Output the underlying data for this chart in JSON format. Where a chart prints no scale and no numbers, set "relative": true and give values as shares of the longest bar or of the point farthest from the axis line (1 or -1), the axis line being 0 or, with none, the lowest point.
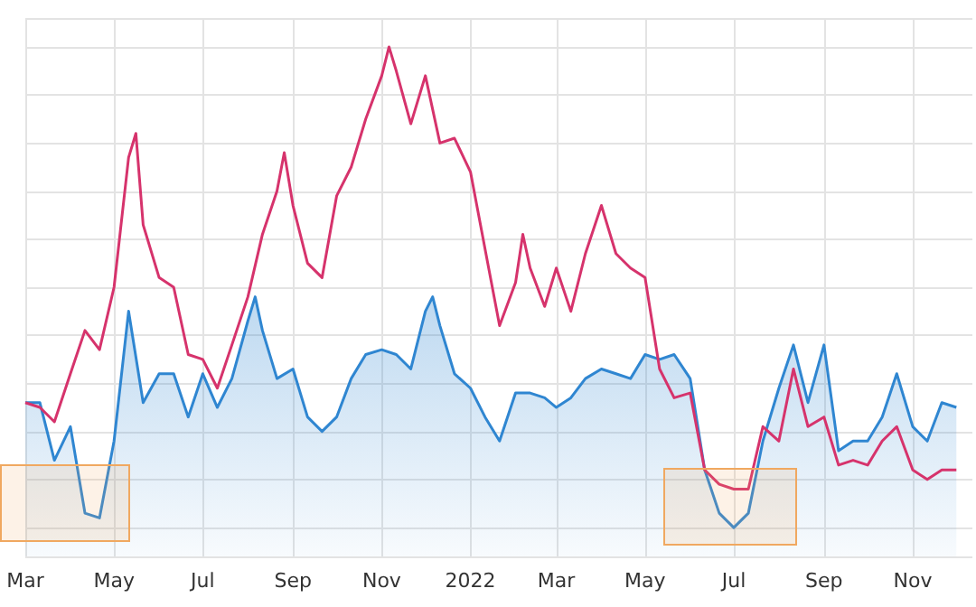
{
  "chart_data": {
    "type": "line",
    "relative": true,
    "grid": true,
    "tick_labels": "x",
    "marker": "none",
    "xlim": [
      "2021-03-01",
      "2022-12-12"
    ],
    "xticks": [
      {
        "value": "2021-03-01",
        "label": "Mar"
      },
      {
        "value": "2021-05-01",
        "label": "May"
      },
      {
        "value": "2021-07-01",
        "label": "Jul"
      },
      {
        "value": "2021-09-01",
        "label": "Sep"
      },
      {
        "value": "2021-11-01",
        "label": "Nov"
      },
      {
        "value": "2022-01-01",
        "label": "2022"
      },
      {
        "value": "2022-03-01",
        "label": "Mar"
      },
      {
        "value": "2022-05-01",
        "label": "May"
      },
      {
        "value": "2022-07-01",
        "label": "Jul"
      },
      {
        "value": "2022-09-01",
        "label": "Sep"
      },
      {
        "value": "2022-11-01",
        "label": "Nov"
      }
    ],
    "series": [
      {
        "color": "#d6336c",
        "x": [
          "2021-03-01",
          "2021-03-11",
          "2021-03-21",
          "2021-04-01",
          "2021-04-11",
          "2021-04-21",
          "2021-05-01",
          "2021-05-11",
          "2021-05-16",
          "2021-05-21",
          "2021-06-01",
          "2021-06-11",
          "2021-06-21",
          "2021-07-01",
          "2021-07-11",
          "2021-07-21",
          "2021-08-01",
          "2021-08-11",
          "2021-08-21",
          "2021-08-26",
          "2021-09-01",
          "2021-09-11",
          "2021-09-21",
          "2021-10-01",
          "2021-10-11",
          "2021-10-21",
          "2021-11-01",
          "2021-11-06",
          "2021-11-11",
          "2021-11-21",
          "2021-12-01",
          "2021-12-11",
          "2021-12-21",
          "2022-01-01",
          "2022-01-11",
          "2022-01-21",
          "2022-02-01",
          "2022-02-06",
          "2022-02-11",
          "2022-02-21",
          "2022-03-01",
          "2022-03-11",
          "2022-03-21",
          "2022-04-01",
          "2022-04-11",
          "2022-04-21",
          "2022-05-01",
          "2022-05-11",
          "2022-05-21",
          "2022-06-01",
          "2022-06-11",
          "2022-06-21",
          "2022-07-01",
          "2022-07-11",
          "2022-07-21",
          "2022-08-01",
          "2022-08-11",
          "2022-08-21",
          "2022-09-01",
          "2022-09-11",
          "2022-09-21",
          "2022-10-01",
          "2022-10-11",
          "2022-10-21",
          "2022-11-01",
          "2022-11-11",
          "2022-11-21",
          "2022-12-01"
        ],
        "values": [
          0.26,
          0.25,
          0.22,
          0.32,
          0.41,
          0.37,
          0.5,
          0.77,
          0.82,
          0.63,
          0.52,
          0.5,
          0.36,
          0.35,
          0.29,
          0.38,
          0.48,
          0.61,
          0.7,
          0.78,
          0.67,
          0.55,
          0.52,
          0.69,
          0.75,
          0.85,
          0.94,
          1,
          0.95,
          0.84,
          0.94,
          0.8,
          0.81,
          0.74,
          0.58,
          0.42,
          0.51,
          0.61,
          0.54,
          0.46,
          0.54,
          0.45,
          0.57,
          0.67,
          0.57,
          0.54,
          0.52,
          0.33,
          0.27,
          0.28,
          0.12,
          0.09,
          0.08,
          0.08,
          0.21,
          0.18,
          0.33,
          0.21,
          0.23,
          0.13,
          0.14,
          0.13,
          0.18,
          0.21,
          0.12,
          0.1,
          0.12,
          0.12
        ]
      },
      {
        "type": "area",
        "color": "#2f86d1",
        "x": [
          "2021-03-01",
          "2021-03-11",
          "2021-03-21",
          "2021-04-01",
          "2021-04-11",
          "2021-04-21",
          "2021-05-01",
          "2021-05-11",
          "2021-05-21",
          "2021-06-01",
          "2021-06-11",
          "2021-06-21",
          "2021-07-01",
          "2021-07-11",
          "2021-07-21",
          "2021-08-01",
          "2021-08-06",
          "2021-08-11",
          "2021-08-21",
          "2021-09-01",
          "2021-09-11",
          "2021-09-21",
          "2021-10-01",
          "2021-10-11",
          "2021-10-21",
          "2021-11-01",
          "2021-11-11",
          "2021-11-21",
          "2021-12-01",
          "2021-12-06",
          "2021-12-11",
          "2021-12-21",
          "2022-01-01",
          "2022-01-11",
          "2022-01-21",
          "2022-02-01",
          "2022-02-11",
          "2022-02-21",
          "2022-03-01",
          "2022-03-11",
          "2022-03-21",
          "2022-04-01",
          "2022-04-11",
          "2022-04-21",
          "2022-05-01",
          "2022-05-11",
          "2022-05-21",
          "2022-06-01",
          "2022-06-11",
          "2022-06-21",
          "2022-07-01",
          "2022-07-11",
          "2022-07-21",
          "2022-08-01",
          "2022-08-11",
          "2022-08-21",
          "2022-09-01",
          "2022-09-11",
          "2022-09-21",
          "2022-10-01",
          "2022-10-11",
          "2022-10-21",
          "2022-11-01",
          "2022-11-11",
          "2022-11-21",
          "2022-12-01"
        ],
        "values": [
          0.26,
          0.26,
          0.14,
          0.21,
          0.03,
          0.02,
          0.18,
          0.45,
          0.26,
          0.32,
          0.32,
          0.23,
          0.32,
          0.25,
          0.31,
          0.43,
          0.48,
          0.41,
          0.31,
          0.33,
          0.23,
          0.2,
          0.23,
          0.31,
          0.36,
          0.37,
          0.36,
          0.33,
          0.45,
          0.48,
          0.42,
          0.32,
          0.29,
          0.23,
          0.18,
          0.28,
          0.28,
          0.27,
          0.25,
          0.27,
          0.31,
          0.33,
          0.32,
          0.31,
          0.36,
          0.35,
          0.36,
          0.31,
          0.12,
          0.03,
          0,
          0.03,
          0.18,
          0.29,
          0.38,
          0.26,
          0.38,
          0.16,
          0.18,
          0.18,
          0.23,
          0.32,
          0.21,
          0.18,
          0.26,
          0.25
        ]
      }
    ]
  }
}
